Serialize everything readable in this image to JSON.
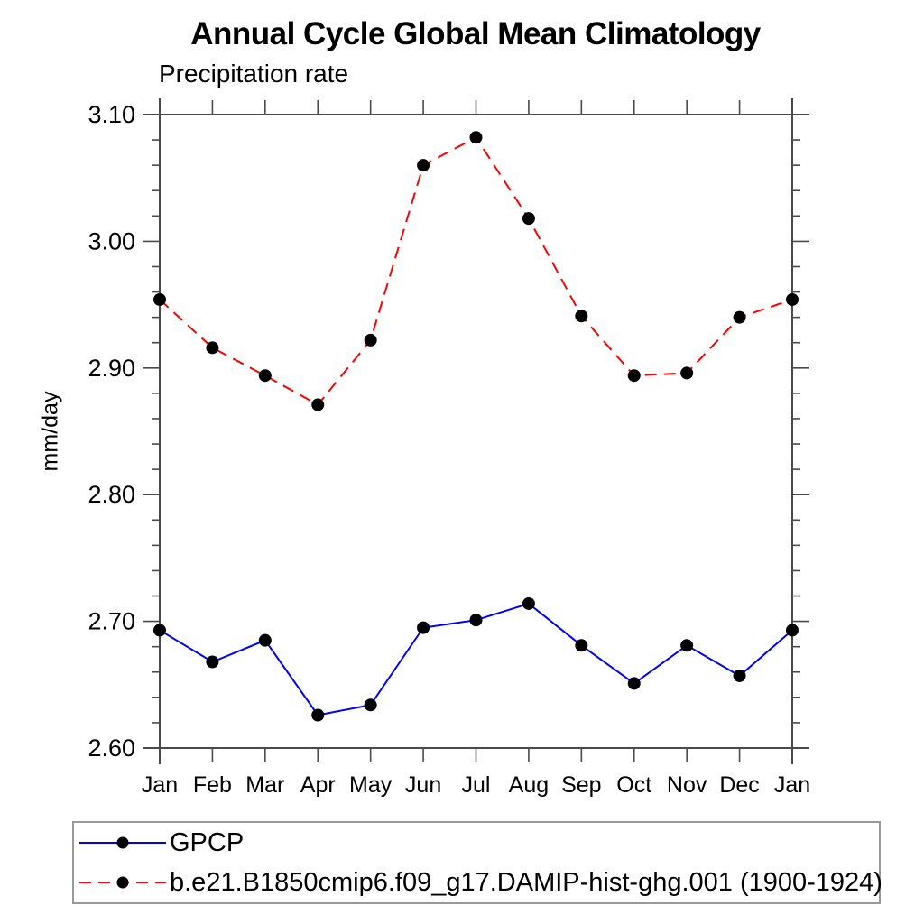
{
  "chart_data": {
    "type": "line",
    "title": "Annual Cycle Global Mean Climatology",
    "subtitle": "Precipitation rate",
    "ylabel": "mm/day",
    "categories": [
      "Jan",
      "Feb",
      "Mar",
      "Apr",
      "May",
      "Jun",
      "Jul",
      "Aug",
      "Sep",
      "Oct",
      "Nov",
      "Dec",
      "Jan"
    ],
    "ylim": [
      2.6,
      3.1
    ],
    "y_tick_labels": [
      "2.60",
      "2.70",
      "2.80",
      "2.90",
      "3.00",
      "3.10"
    ],
    "y_major_tick_interval": 0.1,
    "y_minor_tick_interval": 0.02,
    "grid": false,
    "legend_position": "bottom",
    "axis_color": "#4a4a4a",
    "marker_color": "#000000",
    "series": [
      {
        "name": "GPCP",
        "color": "#0000ff",
        "line_style": "solid",
        "marker": "circle",
        "values": [
          2.693,
          2.668,
          2.685,
          2.626,
          2.634,
          2.695,
          2.701,
          2.714,
          2.681,
          2.651,
          2.681,
          2.657,
          2.693
        ]
      },
      {
        "name": "b.e21.B1850cmip6.f09_g17.DAMIP-hist-ghg.001 (1900-1924)",
        "color": "#ff0000",
        "line_style": "dashed",
        "marker": "circle",
        "values": [
          2.954,
          2.916,
          2.894,
          2.871,
          2.922,
          3.06,
          3.082,
          3.018,
          2.941,
          2.894,
          2.896,
          2.94,
          2.954
        ]
      }
    ]
  }
}
